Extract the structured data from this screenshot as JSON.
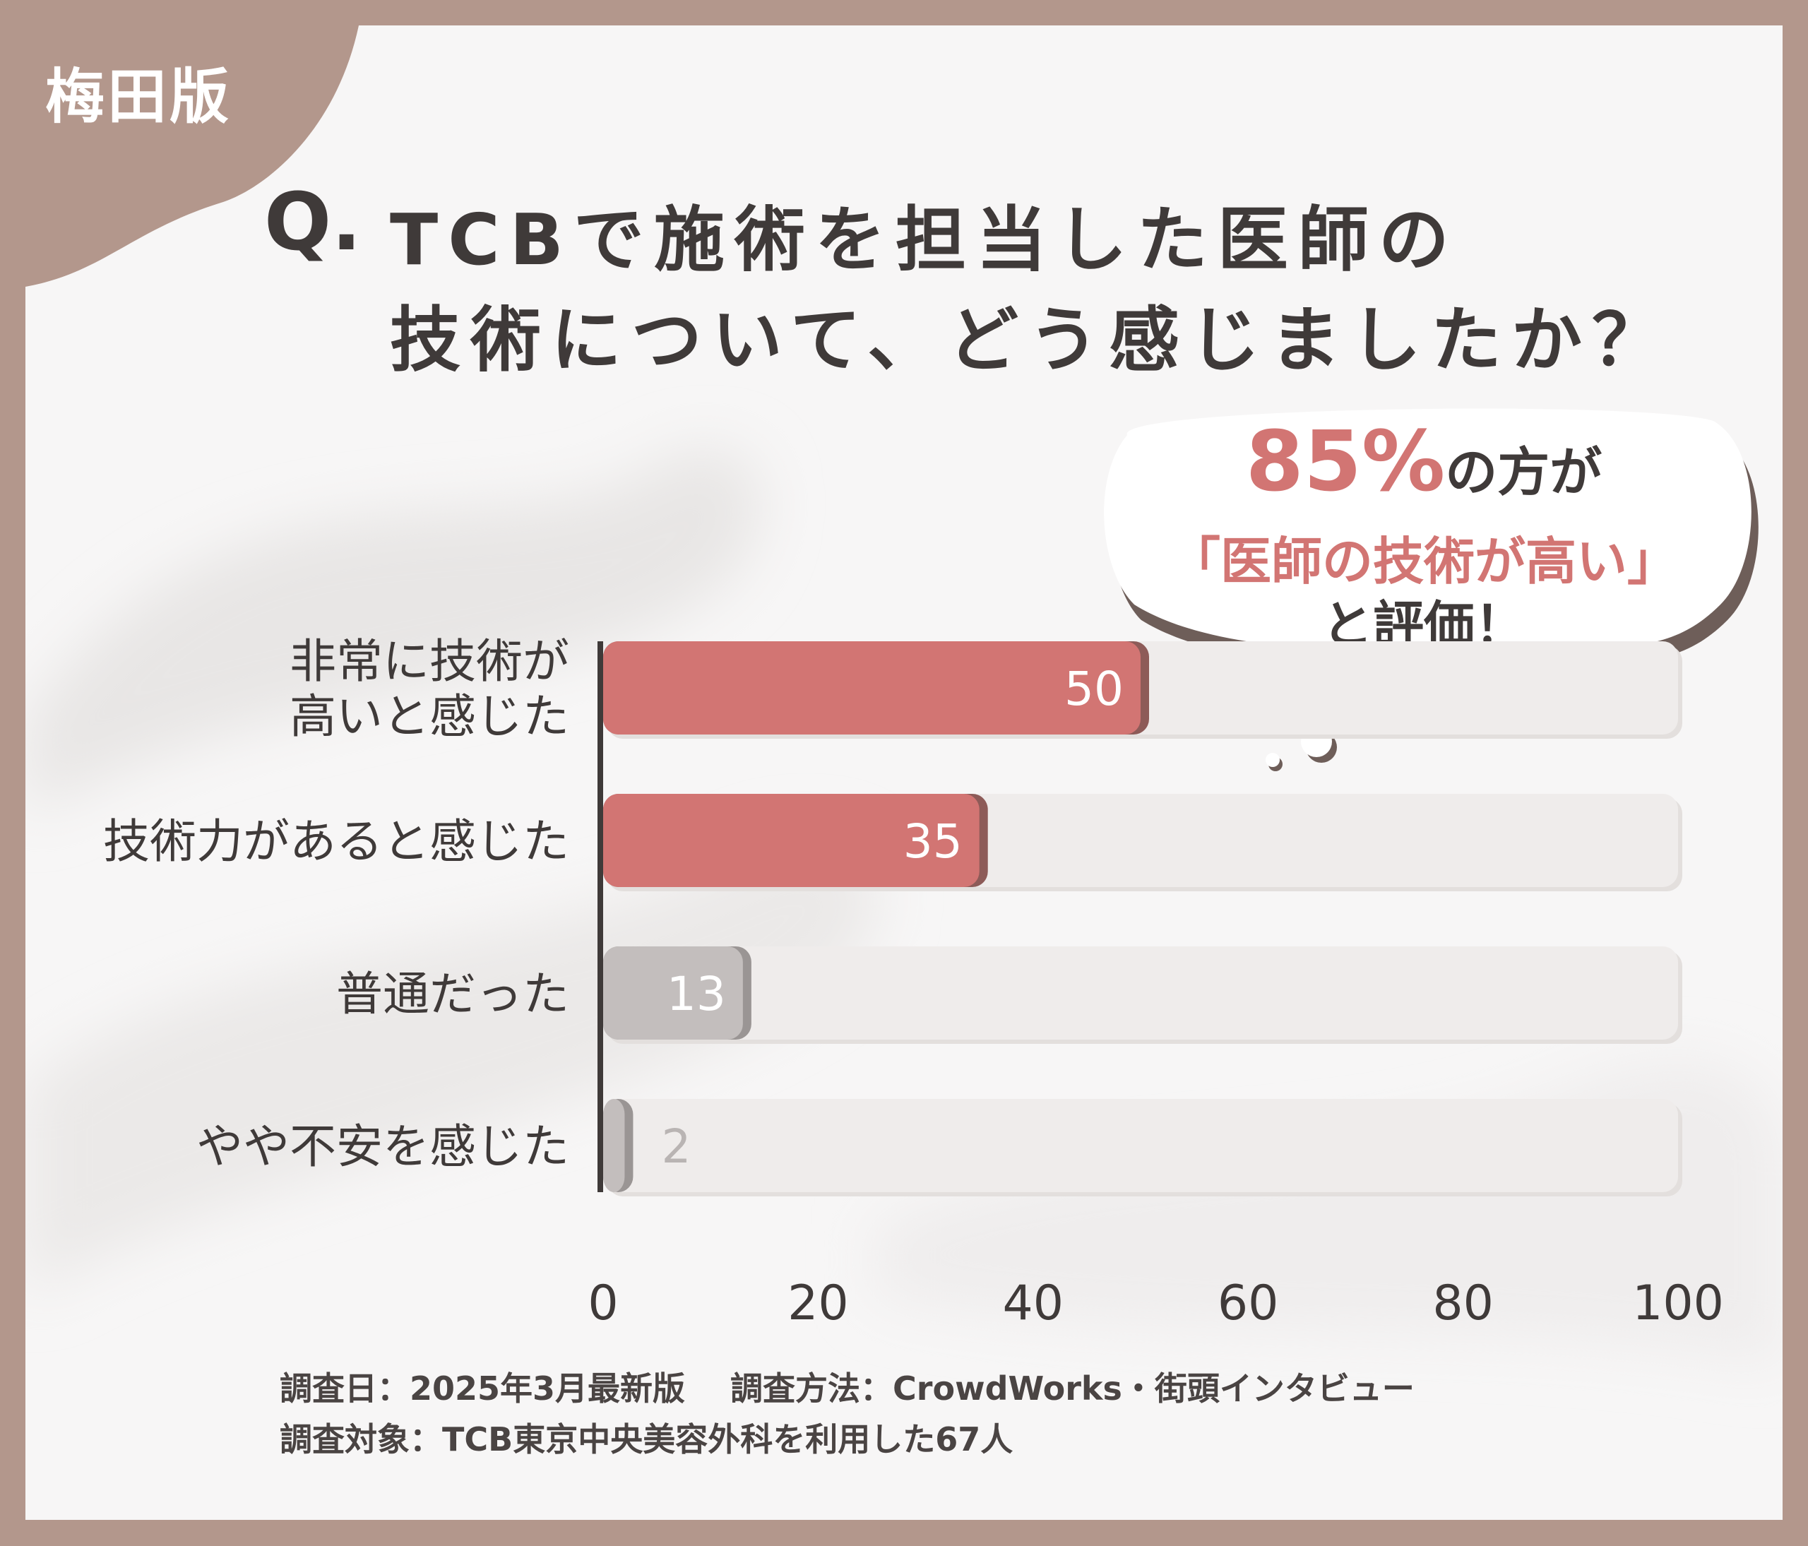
{
  "badge": "梅田版",
  "question": {
    "mark": "Q.",
    "line1": "TCBで施術を担当した医師の",
    "line2": "技術について、どう感じましたか？"
  },
  "callout": {
    "percent": "85%",
    "line1_rest": "の方が",
    "line2": "「医師の技術が高い」",
    "line3": "と評価！"
  },
  "footer": {
    "date": "調査日：2025年3月最新版",
    "method": "調査方法：CrowdWorks・街頭インタビュー",
    "target": "調査対象：TCB東京中央美容外科を利用した67人"
  },
  "colors": {
    "highlight": "#d27573",
    "neutral": "#c3bebd",
    "track": "#efeceb",
    "text": "#3f3a39",
    "frame": "#b3978c"
  },
  "chart_data": {
    "type": "bar",
    "orientation": "horizontal",
    "categories": [
      [
        "非常に技術が",
        "高いと感じた"
      ],
      [
        "技術力があると感じた"
      ],
      [
        "普通だった"
      ],
      [
        "やや不安を感じた"
      ]
    ],
    "values": [
      50,
      35,
      13,
      2
    ],
    "xlim": [
      0,
      100
    ],
    "xticks": [
      0,
      20,
      40,
      60,
      80,
      100
    ],
    "title": "",
    "xlabel": "",
    "ylabel": "",
    "grid": false,
    "legend": "none"
  }
}
